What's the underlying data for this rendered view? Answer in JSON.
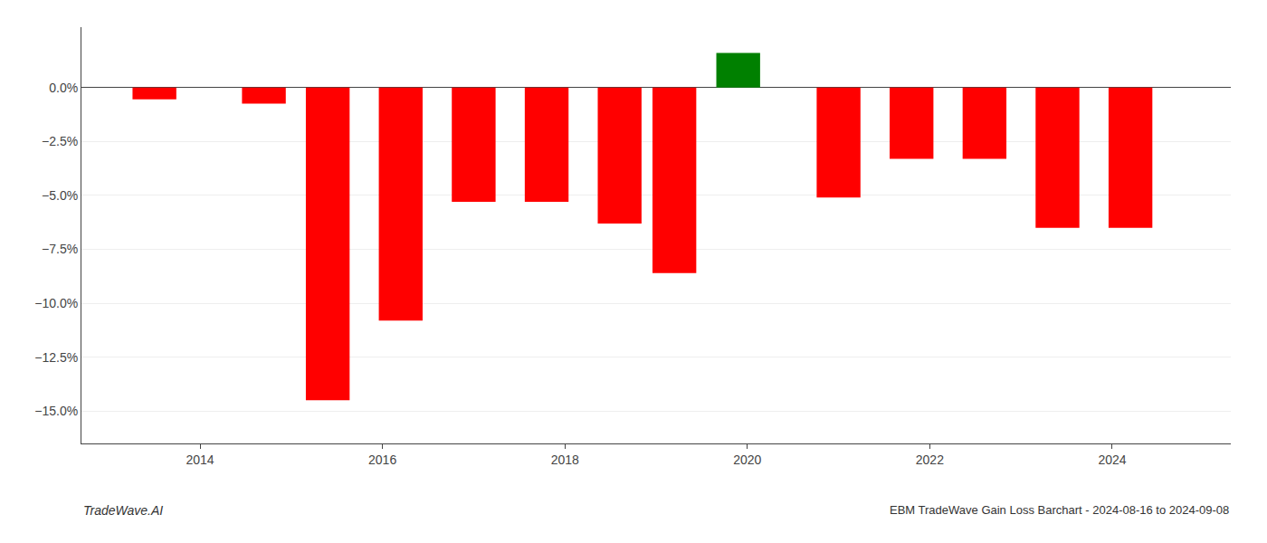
{
  "chart_data": {
    "type": "bar",
    "x": [
      2013.5,
      2014.7,
      2015.4,
      2016.2,
      2017.0,
      2017.8,
      2018.6,
      2019.2,
      2019.9,
      2021.0,
      2021.8,
      2022.6,
      2023.4,
      2024.2
    ],
    "values": [
      -0.55,
      -0.75,
      -14.5,
      -10.8,
      -5.3,
      -5.3,
      -6.3,
      -8.6,
      1.6,
      -5.1,
      -3.3,
      -3.3,
      -6.5,
      -6.5
    ],
    "colors": [
      "#ff0000",
      "#ff0000",
      "#ff0000",
      "#ff0000",
      "#ff0000",
      "#ff0000",
      "#ff0000",
      "#ff0000",
      "#008000",
      "#ff0000",
      "#ff0000",
      "#ff0000",
      "#ff0000",
      "#ff0000"
    ],
    "xlim": [
      2012.7,
      2025.3
    ],
    "xticks": [
      2014,
      2016,
      2018,
      2020,
      2022,
      2024
    ],
    "ylim": [
      -16.5,
      2.8
    ],
    "yticks": [
      {
        "value": 0.0,
        "label": "0.0%"
      },
      {
        "value": -2.5,
        "label": "−2.5%"
      },
      {
        "value": -5.0,
        "label": "−5.0%"
      },
      {
        "value": -7.5,
        "label": "−7.5%"
      },
      {
        "value": -10.0,
        "label": "−10.0%"
      },
      {
        "value": -12.5,
        "label": "−12.5%"
      },
      {
        "value": -15.0,
        "label": "−15.0%"
      }
    ],
    "grid": true,
    "annotations": [
      "TradeWave.AI",
      "EBM TradeWave Gain Loss Barchart - 2024-08-16 to 2024-09-08"
    ]
  }
}
